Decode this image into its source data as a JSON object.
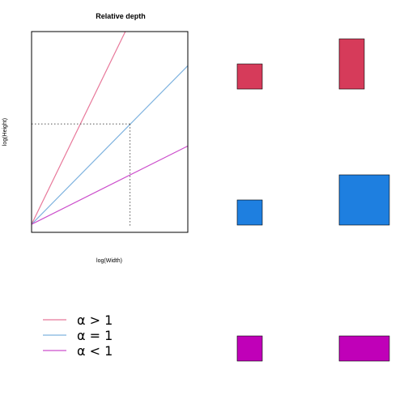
{
  "chart_data": {
    "type": "line",
    "title": "Relative depth",
    "xlabel": "log(Width)",
    "ylabel": "log(Height)",
    "xlim": [
      0,
      1
    ],
    "ylim": [
      0,
      1
    ],
    "grid": false,
    "legend_position": "bottom-left",
    "series": [
      {
        "name": "α > 1",
        "color": "#e8789a",
        "x": [
          0,
          0.6
        ],
        "y": [
          0.04,
          1.0
        ]
      },
      {
        "name": "α = 1",
        "color": "#7fb3df",
        "x": [
          0,
          1
        ],
        "y": [
          0.04,
          0.83
        ]
      },
      {
        "name": "α < 1",
        "color": "#cc4fcc",
        "x": [
          0,
          1
        ],
        "y": [
          0.04,
          0.43
        ]
      }
    ],
    "reference_point": {
      "x": 0.63,
      "y": 0.54,
      "style": "dotted"
    },
    "example_rectangles": [
      {
        "row": "α > 1",
        "color": "#d63b5a",
        "small": {
          "w": 1,
          "h": 1
        },
        "large": {
          "w": 1,
          "h": 2
        }
      },
      {
        "row": "α = 1",
        "color": "#1e7fe0",
        "small": {
          "w": 1,
          "h": 1
        },
        "large": {
          "w": 2,
          "h": 2
        }
      },
      {
        "row": "α < 1",
        "color": "#c000b8",
        "small": {
          "w": 1,
          "h": 1
        },
        "large": {
          "w": 2,
          "h": 1
        }
      }
    ]
  }
}
